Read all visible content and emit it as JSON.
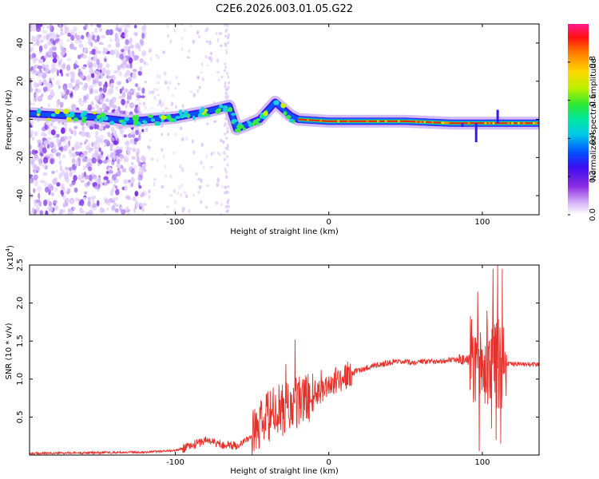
{
  "figure_title": "C2E6.2026.003.01.05.G22",
  "chart_data": [
    {
      "type": "heatmap",
      "title": "C2E6.2026.003.01.05.G22",
      "xlabel": "Height of straight line (km)",
      "ylabel": "Frequency (Hz)",
      "xlim": [
        -195,
        137
      ],
      "ylim": [
        -50,
        50
      ],
      "xticks": [
        -100,
        0,
        100
      ],
      "yticks": [
        -40,
        -20,
        0,
        20,
        40
      ],
      "xtick_labels": [
        "-100",
        "0",
        "100"
      ],
      "ytick_labels": [
        "-40",
        "-20",
        "0",
        "20",
        "40"
      ],
      "colorbar": {
        "label": "Normalized spectral amplitude",
        "range": [
          0,
          1
        ],
        "ticks": [
          0.0,
          0.2,
          0.4,
          0.6,
          0.8
        ],
        "tick_labels": [
          "0.0",
          "0.2",
          "0.4",
          "0.6",
          "0.8"
        ],
        "colormap": "rainbow"
      },
      "ridge": [
        {
          "x": -195,
          "y": 3
        },
        {
          "x": -150,
          "y": 1
        },
        {
          "x": -130,
          "y": -1
        },
        {
          "x": -100,
          "y": 1
        },
        {
          "x": -80,
          "y": 4
        },
        {
          "x": -65,
          "y": 7
        },
        {
          "x": -60,
          "y": -5
        },
        {
          "x": -45,
          "y": 0
        },
        {
          "x": -35,
          "y": 9
        },
        {
          "x": -25,
          "y": 2
        },
        {
          "x": -20,
          "y": 0
        },
        {
          "x": 0,
          "y": -1
        },
        {
          "x": 50,
          "y": -1
        },
        {
          "x": 80,
          "y": -2
        },
        {
          "x": 100,
          "y": -2
        },
        {
          "x": 137,
          "y": -2
        }
      ]
    },
    {
      "type": "line",
      "xlabel": "Height of straight line (km)",
      "ylabel": "SNR (10 * v/v)",
      "y_scale_label": "(x10",
      "y_scale_exp": "4",
      "y_scale_close": ")",
      "xlim": [
        -195,
        137
      ],
      "ylim": [
        0,
        2.5
      ],
      "xticks": [
        -100,
        0,
        100
      ],
      "yticks": [
        0.5,
        1.0,
        1.5,
        2.0,
        2.5
      ],
      "xtick_labels": [
        "-100",
        "0",
        "100"
      ],
      "ytick_labels": [
        "0.5",
        "1.0",
        "1.5",
        "2.0",
        "2.5"
      ],
      "color": "#e8302a",
      "envelope": [
        {
          "x": -195,
          "y": 0.02
        },
        {
          "x": -120,
          "y": 0.04
        },
        {
          "x": -100,
          "y": 0.06
        },
        {
          "x": -90,
          "y": 0.12
        },
        {
          "x": -80,
          "y": 0.2
        },
        {
          "x": -70,
          "y": 0.14
        },
        {
          "x": -60,
          "y": 0.12
        },
        {
          "x": -50,
          "y": 0.25
        },
        {
          "x": -40,
          "y": 0.5
        },
        {
          "x": -30,
          "y": 0.6
        },
        {
          "x": -20,
          "y": 0.68
        },
        {
          "x": -10,
          "y": 0.8
        },
        {
          "x": 0,
          "y": 0.93
        },
        {
          "x": 10,
          "y": 1.03
        },
        {
          "x": 20,
          "y": 1.12
        },
        {
          "x": 30,
          "y": 1.18
        },
        {
          "x": 40,
          "y": 1.22
        },
        {
          "x": 60,
          "y": 1.22
        },
        {
          "x": 80,
          "y": 1.25
        },
        {
          "x": 90,
          "y": 1.25
        },
        {
          "x": 115,
          "y": 1.2
        },
        {
          "x": 137,
          "y": 1.19
        }
      ],
      "spikes": [
        {
          "x": -22,
          "y": 1.52
        },
        {
          "x": -28,
          "y": 1.2
        },
        {
          "x": -17,
          "y": 1.0
        },
        {
          "x": -5,
          "y": 1.12
        },
        {
          "x": 95,
          "y": 1.4
        },
        {
          "x": 97,
          "y": 2.15
        },
        {
          "x": 98,
          "y": 0.05
        },
        {
          "x": 103,
          "y": 1.9
        },
        {
          "x": 106,
          "y": 0.35
        },
        {
          "x": 107,
          "y": 2.45
        },
        {
          "x": 109,
          "y": 0.2
        },
        {
          "x": 110,
          "y": 2.5
        },
        {
          "x": 112,
          "y": 0.15
        },
        {
          "x": 113,
          "y": 2.45
        }
      ]
    }
  ]
}
